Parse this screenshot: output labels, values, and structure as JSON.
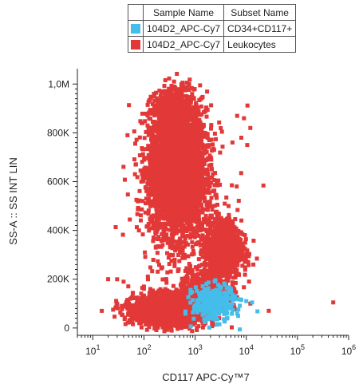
{
  "legend": {
    "headers": [
      "",
      "Sample Name",
      "Subset Name"
    ],
    "rows": [
      {
        "color": "#45bdea",
        "sample": "104D2_APC-Cy7",
        "subset": "CD34+CD117+"
      },
      {
        "color": "#e23838",
        "sample": "104D2_APC-Cy7",
        "subset": "Leukocytes"
      }
    ]
  },
  "chart_data": {
    "type": "scatter",
    "xlabel": "CD117 APC-Cy™7",
    "ylabel": "SS-A :: SS INT LIN",
    "xscale": "log",
    "xlim": [
      5,
      1000000
    ],
    "ylim": [
      -30000,
      1050000
    ],
    "x_ticks": [
      {
        "value": 10,
        "base": "10",
        "exp": "1"
      },
      {
        "value": 100,
        "base": "10",
        "exp": "2"
      },
      {
        "value": 1000,
        "base": "10",
        "exp": "3"
      },
      {
        "value": 10000,
        "base": "10",
        "exp": "4"
      },
      {
        "value": 100000,
        "base": "10",
        "exp": "5"
      },
      {
        "value": 1000000,
        "base": "10",
        "exp": "6"
      }
    ],
    "y_ticks": [
      {
        "value": 0,
        "label": "0"
      },
      {
        "value": 200000,
        "label": "200K"
      },
      {
        "value": 400000,
        "label": "400K"
      },
      {
        "value": 600000,
        "label": "600K"
      },
      {
        "value": 800000,
        "label": "800K"
      },
      {
        "value": 1000000,
        "label": "1,0M"
      }
    ],
    "series": [
      {
        "name": "Leukocytes",
        "color": "#e23838",
        "clusters": [
          {
            "cx": 450,
            "cy": 640000,
            "sx": 0.28,
            "sy": 130000,
            "n": 3400
          },
          {
            "cx": 400,
            "cy": 850000,
            "sx": 0.22,
            "sy": 70000,
            "n": 700
          },
          {
            "cx": 330,
            "cy": 75000,
            "sx": 0.35,
            "sy": 30000,
            "n": 2600
          },
          {
            "cx": 3500,
            "cy": 320000,
            "sx": 0.18,
            "sy": 60000,
            "n": 1100
          },
          {
            "cx": 1500,
            "cy": 150000,
            "sx": 0.25,
            "sy": 40000,
            "n": 400
          },
          {
            "cx": 700,
            "cy": 450000,
            "sx": 0.5,
            "sy": 220000,
            "n": 250
          }
        ],
        "outliers": [
          [
            90,
            840000
          ],
          [
            160,
            950000
          ],
          [
            25,
            75000
          ],
          [
            15,
            70000
          ],
          [
            40,
            190000
          ],
          [
            20,
            200000
          ],
          [
            100,
            170000
          ],
          [
            12000,
            100000
          ],
          [
            500000,
            105000
          ],
          [
            9000,
            860000
          ],
          [
            12000,
            820000
          ],
          [
            8000,
            780000
          ],
          [
            6500,
            580000
          ],
          [
            4500,
            500000
          ],
          [
            80,
            400000
          ],
          [
            120,
            200000
          ]
        ]
      },
      {
        "name": "CD34+CD117+",
        "color": "#45bdea",
        "clusters": [
          {
            "cx": 2300,
            "cy": 100000,
            "sx": 0.2,
            "sy": 35000,
            "n": 350
          }
        ],
        "outliers": [
          [
            8000,
            115000
          ],
          [
            10000,
            110000
          ],
          [
            13000,
            105000
          ],
          [
            5000,
            160000
          ],
          [
            6000,
            130000
          ]
        ]
      }
    ],
    "grid": false,
    "legend_position": "top-right"
  }
}
